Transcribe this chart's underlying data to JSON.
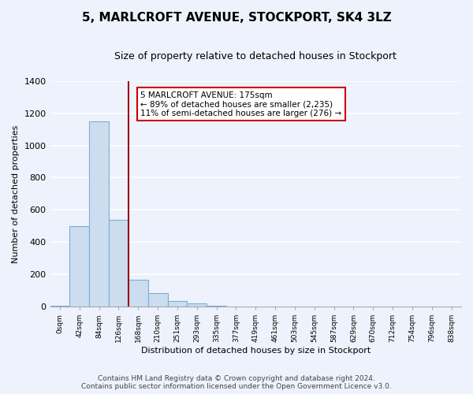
{
  "title": "5, MARLCROFT AVENUE, STOCKPORT, SK4 3LZ",
  "subtitle": "Size of property relative to detached houses in Stockport",
  "xlabel": "Distribution of detached houses by size in Stockport",
  "ylabel": "Number of detached properties",
  "bar_labels": [
    "0sqm",
    "42sqm",
    "84sqm",
    "126sqm",
    "168sqm",
    "210sqm",
    "251sqm",
    "293sqm",
    "335sqm",
    "377sqm",
    "419sqm",
    "461sqm",
    "503sqm",
    "545sqm",
    "587sqm",
    "629sqm",
    "670sqm",
    "712sqm",
    "754sqm",
    "796sqm",
    "838sqm"
  ],
  "bar_heights": [
    5,
    500,
    1150,
    540,
    165,
    85,
    35,
    20,
    5,
    0,
    0,
    0,
    0,
    0,
    0,
    0,
    0,
    0,
    0,
    0,
    0
  ],
  "bar_color": "#ccddf0",
  "bar_edge_color": "#7aadd4",
  "vline_x": 3.0,
  "vline_color": "#991111",
  "annotation_title": "5 MARLCROFT AVENUE: 175sqm",
  "annotation_line1": "← 89% of detached houses are smaller (2,235)",
  "annotation_line2": "11% of semi-detached houses are larger (276) →",
  "annotation_box_color": "#ffffff",
  "annotation_box_edge": "#cc0000",
  "ylim": [
    0,
    1400
  ],
  "yticks": [
    0,
    200,
    400,
    600,
    800,
    1000,
    1200,
    1400
  ],
  "footer_line1": "Contains HM Land Registry data © Crown copyright and database right 2024.",
  "footer_line2": "Contains public sector information licensed under the Open Government Licence v3.0.",
  "background_color": "#eef2fc",
  "plot_bg_color": "#eef2fc",
  "grid_color": "#ffffff",
  "title_fontsize": 11,
  "subtitle_fontsize": 9,
  "footer_fontsize": 6.5
}
